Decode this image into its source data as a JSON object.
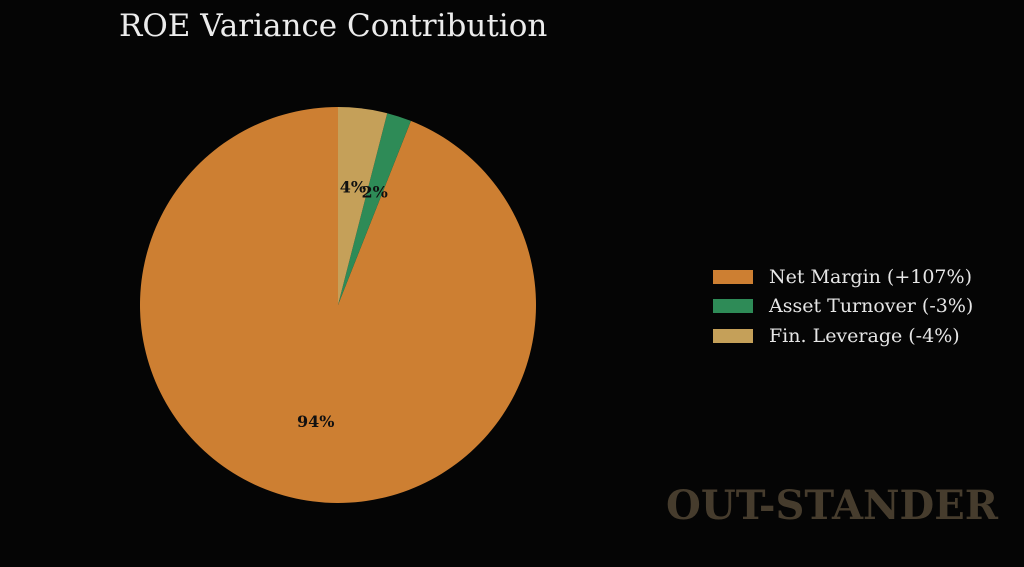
{
  "chart_data": {
    "type": "pie",
    "title": "ROE Variance Contribution",
    "start_angle_deg": 90,
    "direction": "counterclockwise",
    "slices": [
      {
        "label": "Net Margin (+107%)",
        "value": 94,
        "display": "94%",
        "color": "#cd7f32"
      },
      {
        "label": "Asset Turnover (-3%)",
        "value": 2,
        "display": "2%",
        "color": "#2e8b57"
      },
      {
        "label": "Fin. Leverage (-4%)",
        "value": 4,
        "display": "4%",
        "color": "#c5a059"
      }
    ],
    "legend_position": "right"
  },
  "watermark": "OUT-STANDER",
  "colors": {
    "background": "#050505",
    "text": "#e6e6e6",
    "watermark": "#463c2d"
  }
}
